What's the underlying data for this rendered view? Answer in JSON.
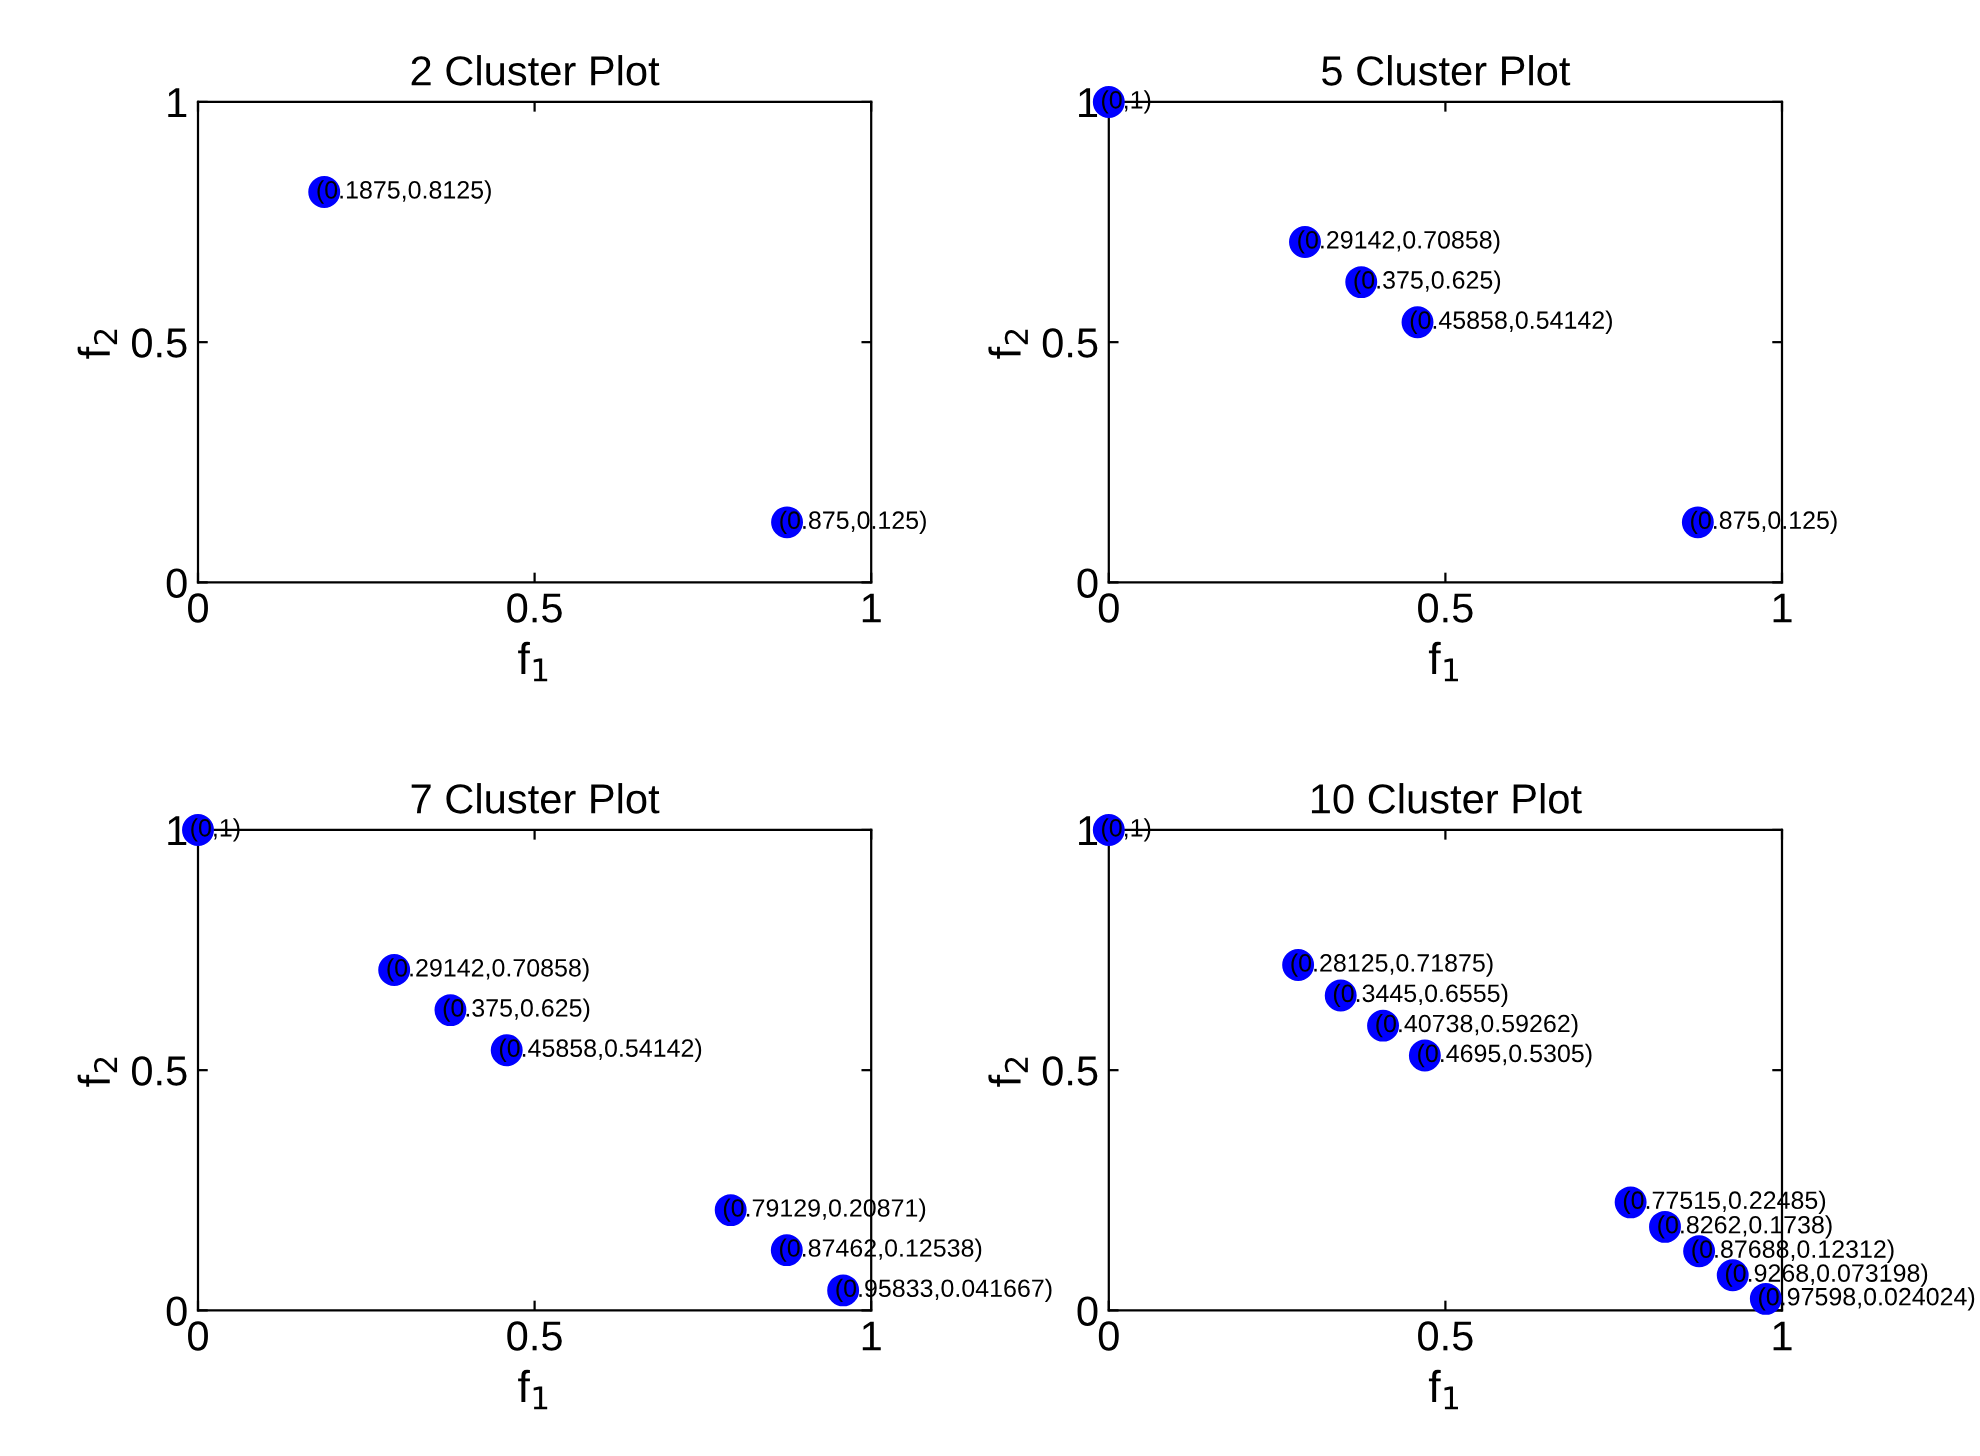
{
  "chart_data": [
    {
      "type": "scatter",
      "title": "2 Cluster Plot",
      "xlabel": "f$_{1}$",
      "ylabel": "f$_{2}$",
      "xlim": [
        0,
        1
      ],
      "ylim": [
        0,
        1
      ],
      "xticks": [
        0,
        0.5,
        1
      ],
      "yticks": [
        0,
        0.5,
        1
      ],
      "grid": false,
      "marker": "circle",
      "series": [
        {
          "color": "#0000ff",
          "x": [
            0.1875,
            0.875
          ],
          "values": [
            0.8125,
            0.125
          ]
        }
      ],
      "annotations": [
        {
          "text": "(0.1875,0.8125)",
          "x": 0.1875,
          "y": 0.8125
        },
        {
          "text": "(0.875,0.125)",
          "x": 0.875,
          "y": 0.125
        }
      ]
    },
    {
      "type": "scatter",
      "title": "5 Cluster Plot",
      "xlabel": "f$_{1}$",
      "ylabel": "f$_{2}$",
      "xlim": [
        0,
        1
      ],
      "ylim": [
        0,
        1
      ],
      "xticks": [
        0,
        0.5,
        1
      ],
      "yticks": [
        0,
        0.5,
        1
      ],
      "grid": false,
      "marker": "circle",
      "series": [
        {
          "color": "#0000ff",
          "x": [
            0,
            0.29142,
            0.375,
            0.45858,
            0.875
          ],
          "values": [
            1,
            0.70858,
            0.625,
            0.54142,
            0.125
          ]
        }
      ],
      "annotations": [
        {
          "text": "(0,1)",
          "x": 0,
          "y": 1
        },
        {
          "text": "(0.29142,0.70858)",
          "x": 0.29142,
          "y": 0.70858
        },
        {
          "text": "(0.375,0.625)",
          "x": 0.375,
          "y": 0.625
        },
        {
          "text": "(0.45858,0.54142)",
          "x": 0.45858,
          "y": 0.54142
        },
        {
          "text": "(0.875,0.125)",
          "x": 0.875,
          "y": 0.125
        }
      ]
    },
    {
      "type": "scatter",
      "title": "7 Cluster Plot",
      "xlabel": "f$_{1}$",
      "ylabel": "f$_{2}$",
      "xlim": [
        0,
        1
      ],
      "ylim": [
        0,
        1
      ],
      "xticks": [
        0,
        0.5,
        1
      ],
      "yticks": [
        0,
        0.5,
        1
      ],
      "grid": false,
      "marker": "circle",
      "series": [
        {
          "color": "#0000ff",
          "x": [
            0,
            0.29142,
            0.375,
            0.45858,
            0.79129,
            0.87462,
            0.95833
          ],
          "values": [
            1,
            0.70858,
            0.625,
            0.54142,
            0.20871,
            0.12538,
            0.041667
          ]
        }
      ],
      "annotations": [
        {
          "text": "(0,1)",
          "x": 0,
          "y": 1
        },
        {
          "text": "(0.29142,0.70858)",
          "x": 0.29142,
          "y": 0.70858
        },
        {
          "text": "(0.375,0.625)",
          "x": 0.375,
          "y": 0.625
        },
        {
          "text": "(0.45858,0.54142)",
          "x": 0.45858,
          "y": 0.54142
        },
        {
          "text": "(0.79129,0.20871)",
          "x": 0.79129,
          "y": 0.20871
        },
        {
          "text": "(0.87462,0.12538)",
          "x": 0.87462,
          "y": 0.12538
        },
        {
          "text": "(0.95833,0.041667)",
          "x": 0.95833,
          "y": 0.041667
        }
      ]
    },
    {
      "type": "scatter",
      "title": "10 Cluster Plot",
      "xlabel": "f$_{1}$",
      "ylabel": "f$_{2}$",
      "xlim": [
        0,
        1
      ],
      "ylim": [
        0,
        1
      ],
      "xticks": [
        0,
        0.5,
        1
      ],
      "yticks": [
        0,
        0.5,
        1
      ],
      "grid": false,
      "marker": "circle",
      "series": [
        {
          "color": "#0000ff",
          "x": [
            0,
            0.28125,
            0.3445,
            0.40738,
            0.4695,
            0.77515,
            0.8262,
            0.87688,
            0.9268,
            0.97598
          ],
          "values": [
            1,
            0.71875,
            0.6555,
            0.59262,
            0.5305,
            0.22485,
            0.1738,
            0.12312,
            0.073198,
            0.024024
          ]
        }
      ],
      "annotations": [
        {
          "text": "(0,1)",
          "x": 0,
          "y": 1
        },
        {
          "text": "(0.28125,0.71875)",
          "x": 0.28125,
          "y": 0.71875
        },
        {
          "text": "(0.3445,0.6555)",
          "x": 0.3445,
          "y": 0.6555
        },
        {
          "text": "(0.40738,0.59262)",
          "x": 0.40738,
          "y": 0.59262
        },
        {
          "text": "(0.4695,0.5305)",
          "x": 0.4695,
          "y": 0.5305
        },
        {
          "text": "(0.77515,0.22485)",
          "x": 0.77515,
          "y": 0.22485
        },
        {
          "text": "(0.8262,0.1738)",
          "x": 0.8262,
          "y": 0.1738
        },
        {
          "text": "(0.87688,0.12312)",
          "x": 0.87688,
          "y": 0.12312
        },
        {
          "text": "(0.9268,0.073198)",
          "x": 0.9268,
          "y": 0.073198
        },
        {
          "text": "(0.97598,0.024024)",
          "x": 0.97598,
          "y": 0.024024
        }
      ]
    }
  ]
}
